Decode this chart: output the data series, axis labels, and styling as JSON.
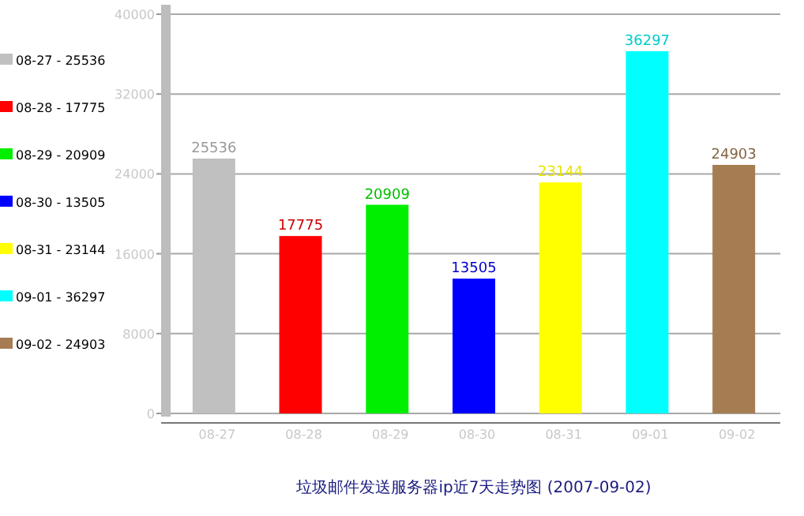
{
  "chart_data": {
    "type": "bar",
    "title": "垃圾邮件发送服务器ip近7天走势图 (2007-09-02)",
    "categories": [
      "08-27",
      "08-28",
      "08-29",
      "08-30",
      "08-31",
      "09-01",
      "09-02"
    ],
    "series": [
      {
        "name": "08-27 - 25536",
        "color": "#c0c0c0",
        "values": [
          25536,
          null,
          null,
          null,
          null,
          null,
          null
        ]
      },
      {
        "name": "08-28 - 17775",
        "color": "#ff0000",
        "values": [
          null,
          17775,
          null,
          null,
          null,
          null,
          null
        ]
      },
      {
        "name": "08-29 - 20909",
        "color": "#00ee00",
        "values": [
          null,
          null,
          20909,
          null,
          null,
          null,
          null
        ]
      },
      {
        "name": "08-30 - 13505",
        "color": "#0000ff",
        "values": [
          null,
          null,
          null,
          13505,
          null,
          null,
          null
        ]
      },
      {
        "name": "08-31 - 23144",
        "color": "#ffff00",
        "values": [
          null,
          null,
          null,
          null,
          23144,
          null,
          null
        ]
      },
      {
        "name": "09-01 - 36297",
        "color": "#00ffff",
        "values": [
          null,
          null,
          null,
          null,
          null,
          36297,
          null
        ]
      },
      {
        "name": "09-02 - 24903",
        "color": "#a67c52",
        "values": [
          null,
          null,
          null,
          null,
          null,
          null,
          24903
        ]
      }
    ],
    "ylim": [
      0,
      40000
    ],
    "yticks": [
      0,
      8000,
      16000,
      24000,
      32000,
      40000
    ],
    "grid": "y",
    "data_labels": true,
    "legend": "left"
  }
}
